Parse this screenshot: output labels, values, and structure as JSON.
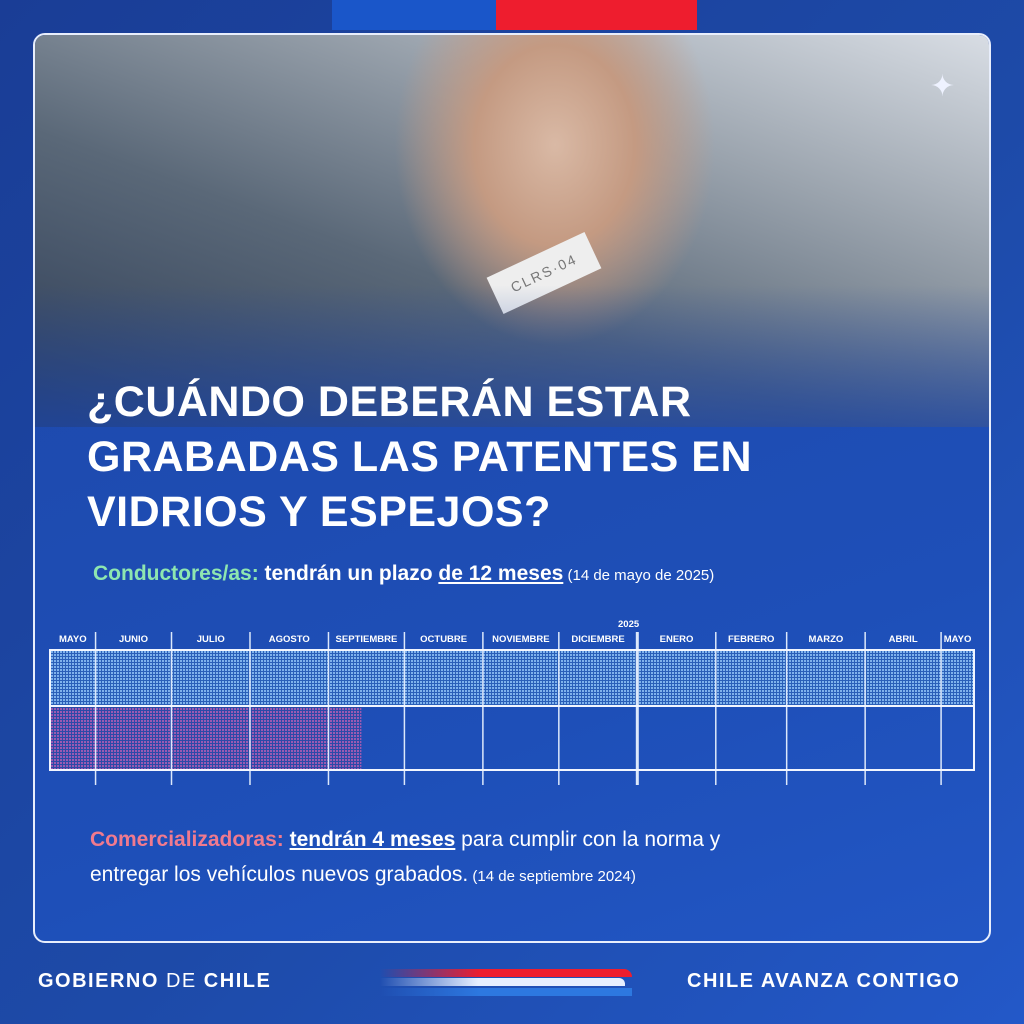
{
  "colors": {
    "blue": "#1a56c9",
    "red": "#ee1d2e",
    "conductores": "#8ee6b0",
    "comercializadoras": "#f07a8e",
    "bar_blue": "#6fa8e8",
    "bar_pink": "#a85ab0"
  },
  "photo": {
    "tag_text": "CLRS·04",
    "sparkle_icon": "sparkle-icon"
  },
  "title": {
    "lines": [
      "¿CUÁNDO DEBERÁN ESTAR",
      "GRABADAS LAS PATENTES EN",
      "VIDRIOS Y ESPEJOS?"
    ]
  },
  "conductores": {
    "label": "Conductores/as:",
    "text": " tendrán un plazo ",
    "highlight": "de 12 meses",
    "note": " (14 de mayo de 2025)"
  },
  "timeline": {
    "year_label": "2025",
    "months": [
      "MAYO",
      "JUNIO",
      "JULIO",
      "AGOSTO",
      "SEPTIEMBRE",
      "OCTUBRE",
      "NOVIEMBRE",
      "DICIEMBRE",
      "ENERO",
      "FEBRERO",
      "MARZO",
      "ABRIL",
      "MAYO"
    ],
    "bars": [
      {
        "name": "Conductores/as",
        "start": "2024-05-14",
        "end": "2025-05-14",
        "color": "#6fa8e8"
      },
      {
        "name": "Comercializadoras",
        "start": "2024-05-14",
        "end": "2024-09-14",
        "color": "#a85ab0"
      }
    ]
  },
  "comercializadoras": {
    "label": "Comercializadoras:",
    "text_before": " ",
    "highlight": "tendrán 4 meses",
    "text_after": " para cumplir con la norma y",
    "line2": "entregar los vehículos nuevos grabados.",
    "note": " (14 de septiembre 2024)"
  },
  "footer": {
    "left_bold1": "GOBIERNO ",
    "left_light": "DE",
    "left_bold2": " CHILE",
    "right": "CHILE AVANZA CONTIGO"
  }
}
